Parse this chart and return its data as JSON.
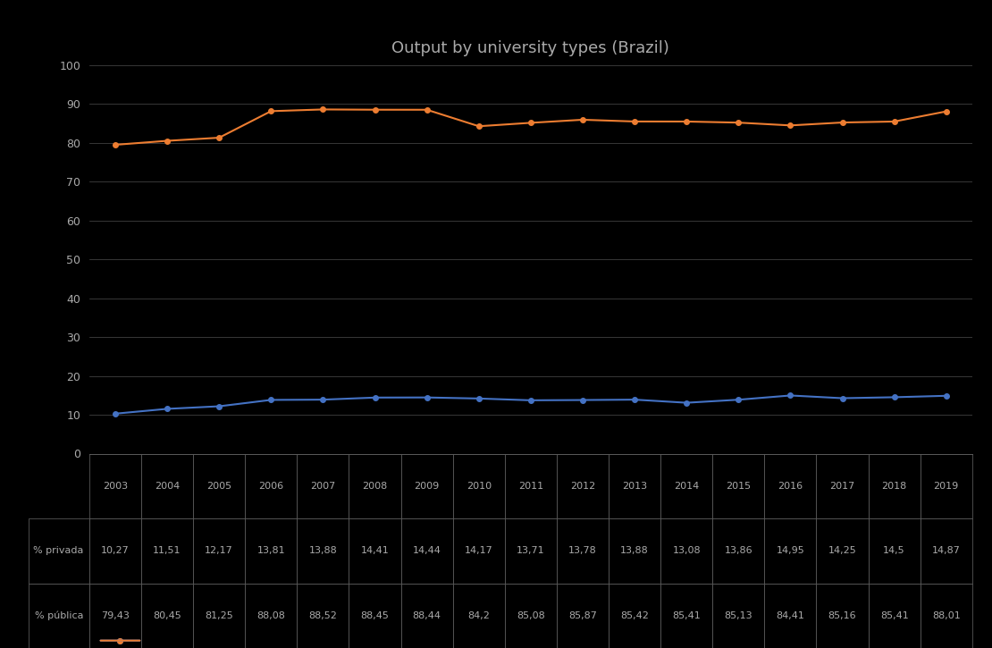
{
  "title": "Output by university types (Brazil)",
  "years": [
    2003,
    2004,
    2005,
    2006,
    2007,
    2008,
    2009,
    2010,
    2011,
    2012,
    2013,
    2014,
    2015,
    2016,
    2017,
    2018,
    2019
  ],
  "private": [
    10.27,
    11.51,
    12.17,
    13.81,
    13.88,
    14.41,
    14.44,
    14.17,
    13.71,
    13.78,
    13.88,
    13.08,
    13.86,
    14.95,
    14.25,
    14.5,
    14.87
  ],
  "public": [
    79.43,
    80.45,
    81.25,
    88.08,
    88.52,
    88.45,
    88.44,
    84.2,
    85.08,
    85.87,
    85.42,
    85.41,
    85.13,
    84.41,
    85.16,
    85.41,
    88.01
  ],
  "private_label": "% privada",
  "public_label": "% pública",
  "private_color": "#4472C4",
  "public_color": "#ED7D31",
  "background_color": "#000000",
  "text_color": "#AAAAAA",
  "grid_color": "#FFFFFF",
  "ylim": [
    0,
    100
  ],
  "yticks": [
    0,
    10,
    20,
    30,
    40,
    50,
    60,
    70,
    80,
    90,
    100
  ],
  "figsize": [
    11.1,
    7.25
  ],
  "dpi": 100
}
